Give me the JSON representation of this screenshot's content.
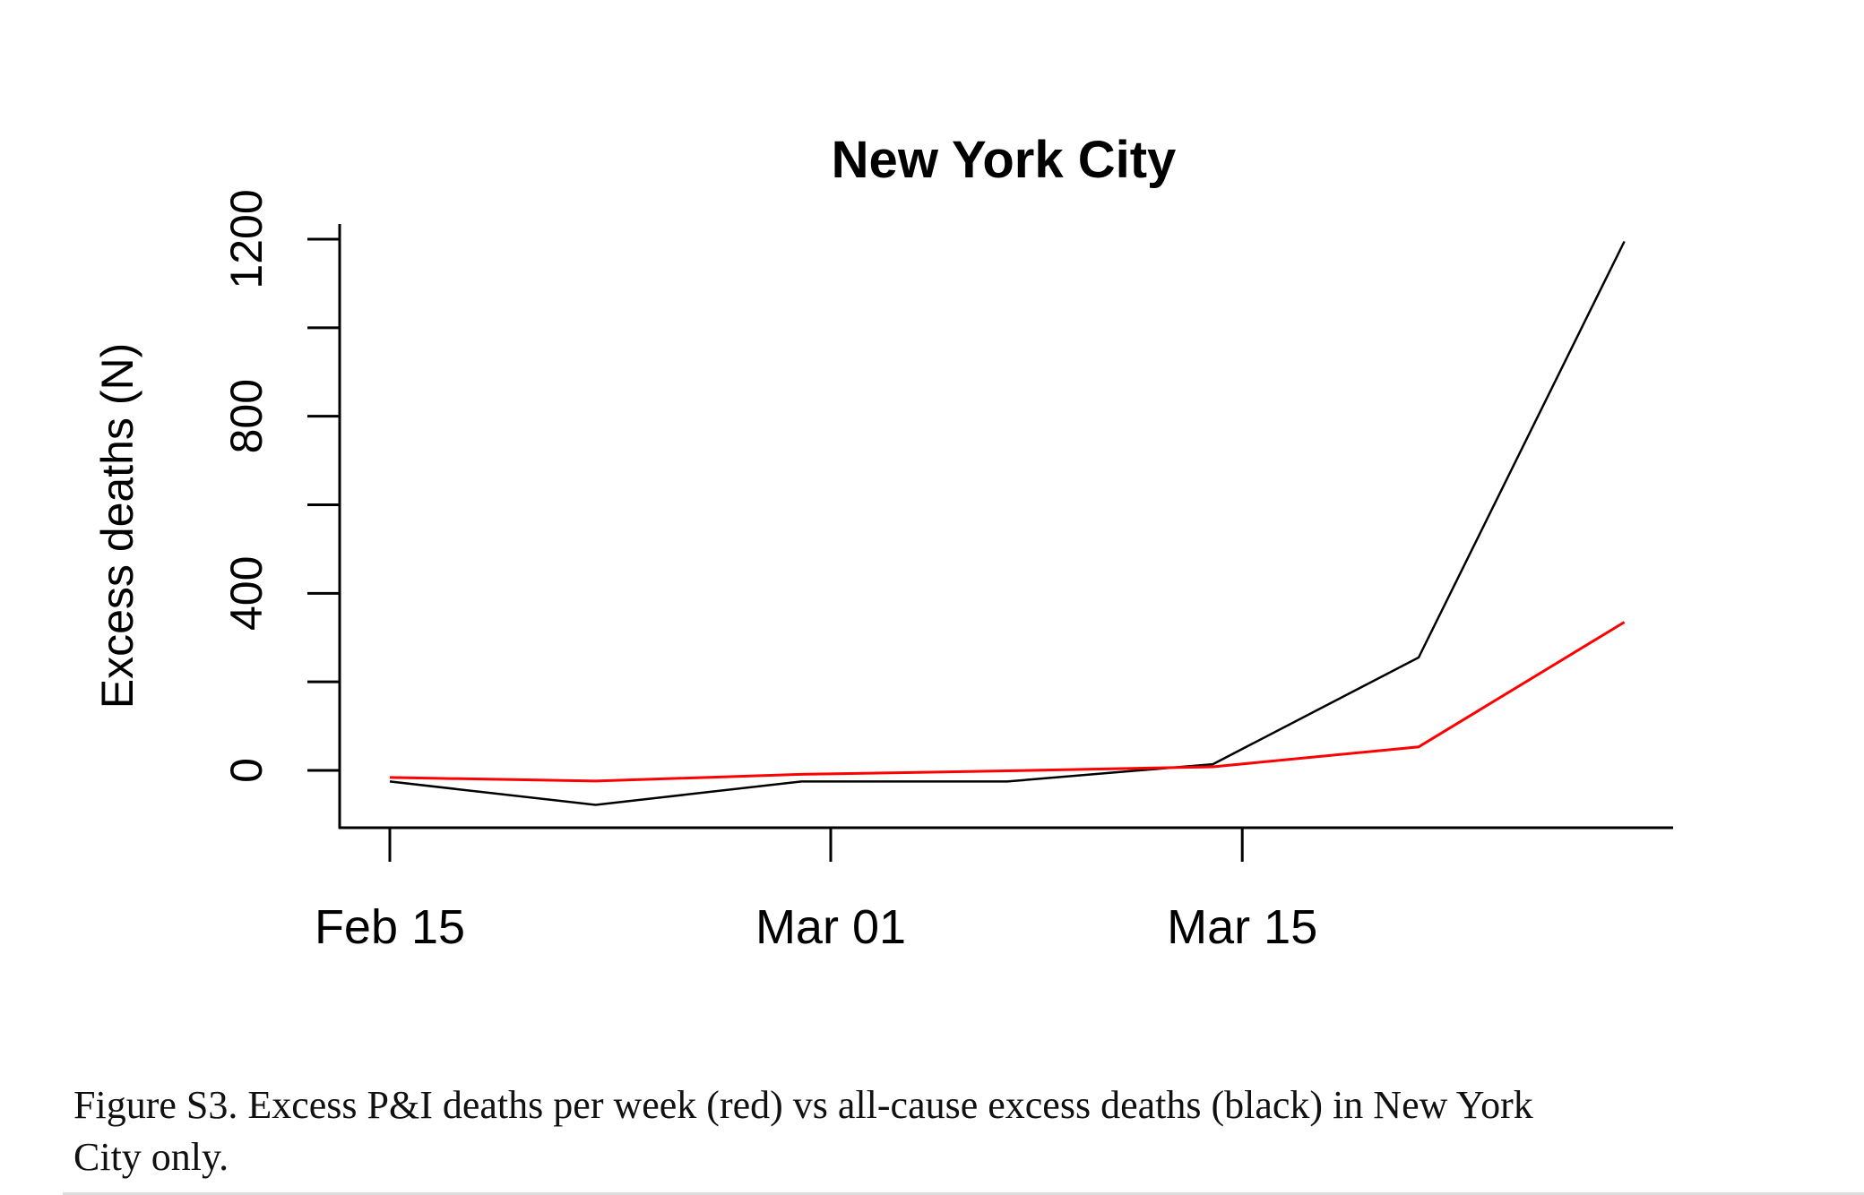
{
  "chart_data": {
    "type": "line",
    "title": "New York City",
    "xlabel": "",
    "ylabel": "Excess deaths (N)",
    "x": [
      "2020-02-15",
      "2020-02-22",
      "2020-02-29",
      "2020-03-07",
      "2020-03-14",
      "2020-03-21",
      "2020-03-28"
    ],
    "x_ticks": [
      {
        "date": "2020-02-15",
        "label": "Feb 15"
      },
      {
        "date": "2020-03-01",
        "label": "Mar 01"
      },
      {
        "date": "2020-03-15",
        "label": "Mar 15"
      }
    ],
    "y_ticks": [
      0,
      200,
      400,
      600,
      800,
      1000,
      1200
    ],
    "y_tick_labels": [
      "0",
      "400",
      "800",
      "1200"
    ],
    "ylim": [
      -130,
      1250
    ],
    "grid": false,
    "series": [
      {
        "color": "#000000",
        "values": [
          -25,
          -78,
          -25,
          -25,
          14,
          255,
          1195
        ]
      },
      {
        "color": "#ff0000",
        "values": [
          -16,
          -24,
          -9,
          -1,
          8,
          53,
          335
        ]
      }
    ]
  },
  "caption": {
    "line1": "Figure S3. Excess P&I deaths per week (red) vs all-cause excess deaths (black) in New York",
    "line2": "City only."
  }
}
